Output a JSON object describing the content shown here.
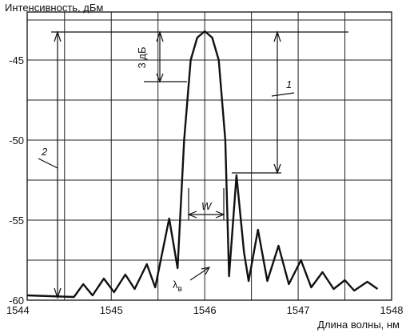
{
  "chart_data": {
    "type": "line",
    "y_label": "Интенсивность, дБм",
    "x_label": "Длина волны, нм",
    "xlim": [
      1544.1,
      1548
    ],
    "xticks": [
      1544,
      1545,
      1546,
      1547,
      1548
    ],
    "xminor": [
      1544.5,
      1545.5,
      1546.5,
      1547.5
    ],
    "ylim": [
      -60,
      -42
    ],
    "yticks": [
      -60,
      -55,
      -50,
      -45
    ],
    "yminor": [
      -57.5,
      -52.5,
      -47.5,
      -42.5
    ],
    "grid": true,
    "series": [
      {
        "color": "#111111",
        "x": [
          1544.1,
          1544.6,
          1544.7,
          1544.8,
          1544.92,
          1545.03,
          1545.15,
          1545.25,
          1545.38,
          1545.47,
          1545.62,
          1545.71,
          1545.78,
          1545.85,
          1545.92,
          1546.0,
          1546.08,
          1546.15,
          1546.22,
          1546.26,
          1546.34,
          1546.42,
          1546.47,
          1546.57,
          1546.67,
          1546.79,
          1546.9,
          1547.03,
          1547.14,
          1547.26,
          1547.38,
          1547.5,
          1547.6,
          1547.74,
          1547.85
        ],
        "values": [
          -59.7,
          -59.8,
          -59.0,
          -59.7,
          -58.65,
          -59.5,
          -58.4,
          -59.3,
          -57.75,
          -59.2,
          -54.9,
          -58.0,
          -50,
          -45,
          -43.6,
          -43.2,
          -43.6,
          -45,
          -50,
          -58.5,
          -52.2,
          -57,
          -58.8,
          -55.6,
          -58.8,
          -56.6,
          -59,
          -57.5,
          -59.2,
          -58.25,
          -59.3,
          -58.75,
          -59.4,
          -58.85,
          -59.3
        ]
      }
    ],
    "annotations": {
      "db3": "3 дБ",
      "label1": "1",
      "label2": "2",
      "width": "W",
      "lambda": "λ",
      "lambda_sub": "в"
    }
  }
}
